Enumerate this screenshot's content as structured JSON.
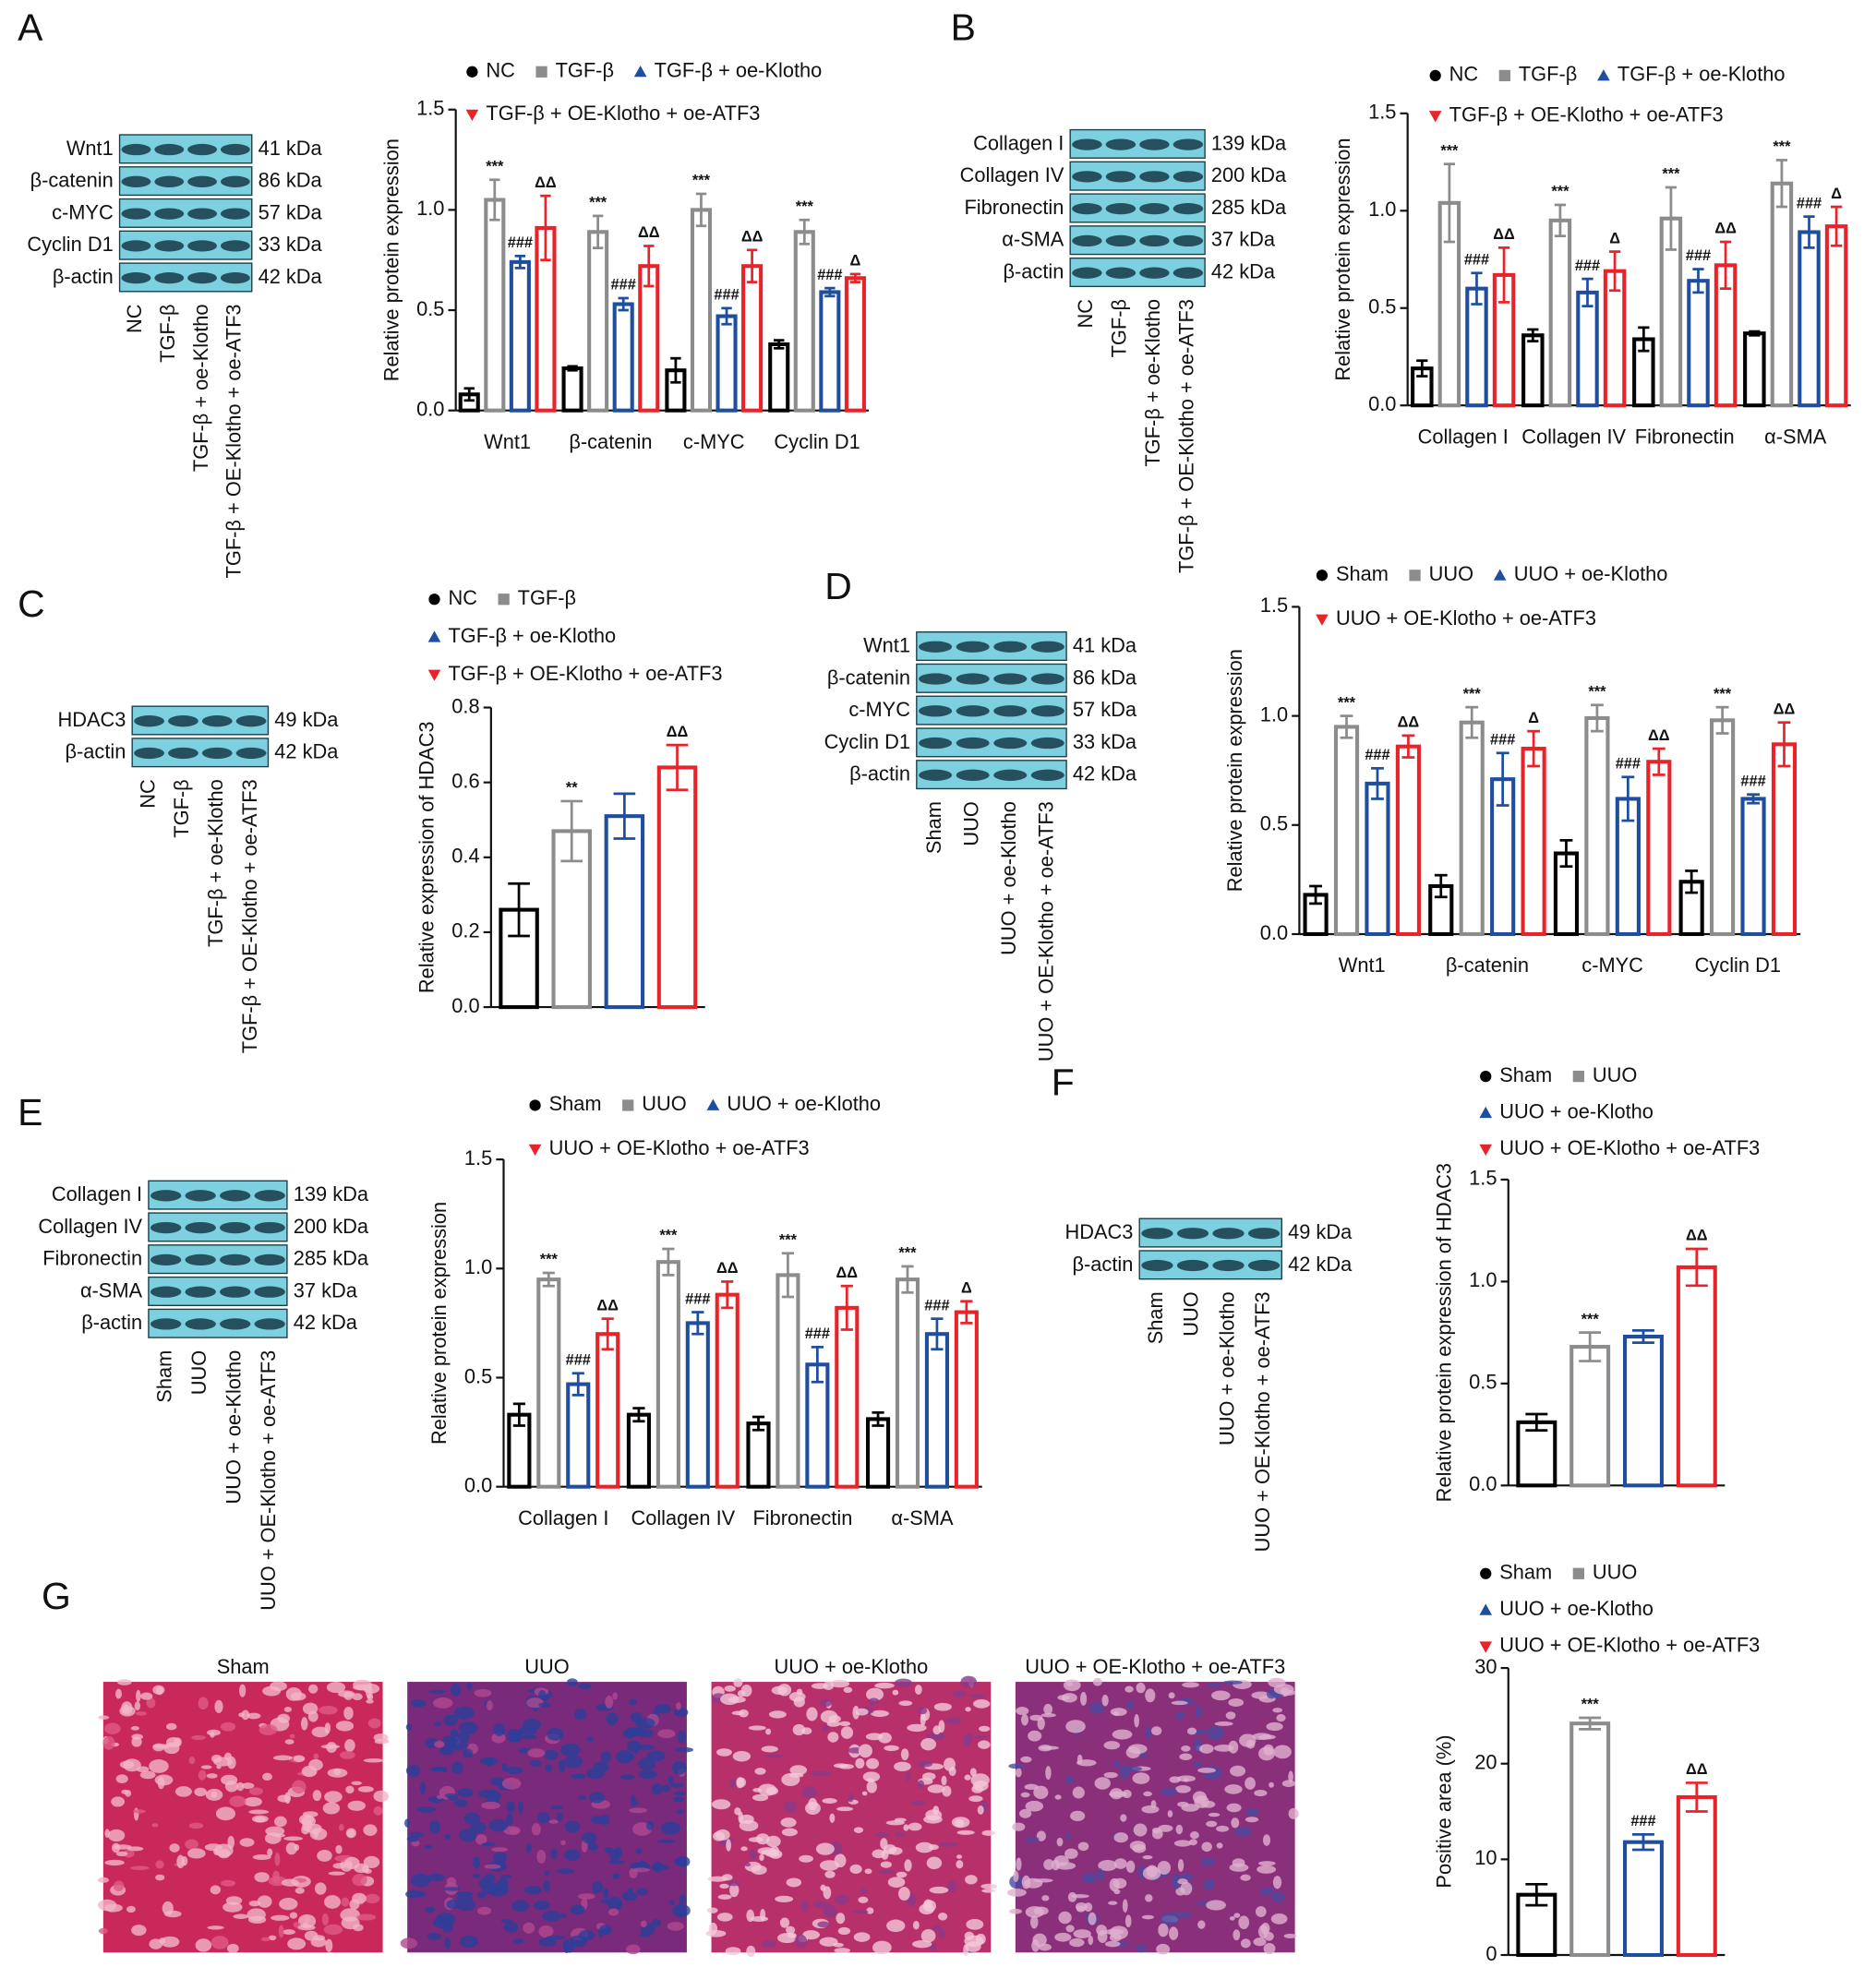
{
  "panel_labels": [
    "A",
    "B",
    "C",
    "D",
    "E",
    "F",
    "G"
  ],
  "blots": [
    {
      "bands": [
        {
          "name": "Wnt1",
          "size": "41 kDa"
        },
        {
          "name": "β-catenin",
          "size": "86 kDa"
        },
        {
          "name": "c-MYC",
          "size": "57 kDa"
        },
        {
          "name": "Cyclin D1",
          "size": "33 kDa"
        },
        {
          "name": "β-actin",
          "size": "42 kDa"
        }
      ],
      "lanes": [
        "NC",
        "TGF-β",
        "TGF-β + oe-Klotho",
        "TGF-β + OE-Klotho + oe-ATF3"
      ]
    },
    {
      "bands": [
        {
          "name": "Collagen I",
          "size": "139 kDa"
        },
        {
          "name": "Collagen IV",
          "size": "200 kDa"
        },
        {
          "name": "Fibronectin",
          "size": "285 kDa"
        },
        {
          "name": "α-SMA",
          "size": "37 kDa"
        },
        {
          "name": "β-actin",
          "size": "42 kDa"
        }
      ],
      "lanes": [
        "NC",
        "TGF-β",
        "TGF-β + oe-Klotho",
        "TGF-β + OE-Klotho + oe-ATF3"
      ]
    },
    {
      "bands": [
        {
          "name": "HDAC3",
          "size": "49 kDa"
        },
        {
          "name": "β-actin",
          "size": "42 kDa"
        }
      ],
      "lanes": [
        "NC",
        "TGF-β",
        "TGF-β + oe-Klotho",
        "TGF-β + OE-Klotho + oe-ATF3"
      ]
    },
    {
      "bands": [
        {
          "name": "Wnt1",
          "size": "41 kDa"
        },
        {
          "name": "β-catenin",
          "size": "86 kDa"
        },
        {
          "name": "c-MYC",
          "size": "57 kDa"
        },
        {
          "name": "Cyclin D1",
          "size": "33 kDa"
        },
        {
          "name": "β-actin",
          "size": "42 kDa"
        }
      ],
      "lanes": [
        "Sham",
        "UUO",
        "UUO + oe-Klotho",
        "UUO + OE-Klotho + oe-ATF3"
      ]
    },
    {
      "bands": [
        {
          "name": "Collagen I",
          "size": "139 kDa"
        },
        {
          "name": "Collagen IV",
          "size": "200 kDa"
        },
        {
          "name": "Fibronectin",
          "size": "285 kDa"
        },
        {
          "name": "α-SMA",
          "size": "37 kDa"
        },
        {
          "name": "β-actin",
          "size": "42 kDa"
        }
      ],
      "lanes": [
        "Sham",
        "UUO",
        "UUO + oe-Klotho",
        "UUO + OE-Klotho + oe-ATF3"
      ]
    },
    {
      "bands": [
        {
          "name": "HDAC3",
          "size": "49 kDa"
        },
        {
          "name": "β-actin",
          "size": "42 kDa"
        }
      ],
      "lanes": [
        "Sham",
        "UUO",
        "UUO + oe-Klotho",
        "UUO + OE-Klotho + oe-ATF3"
      ]
    }
  ],
  "histology": {
    "labels": [
      "Sham",
      "UUO",
      "UUO + oe-Klotho",
      "UUO + OE-Klotho + oe-ATF3"
    ]
  },
  "chart_data": [
    {
      "type": "bar",
      "y_label": "Relative protein expression",
      "categories": [
        "Wnt1",
        "β-catenin",
        "c-MYC",
        "Cyclin D1"
      ],
      "ylim": [
        0,
        1.5
      ],
      "yticks": [
        {
          "value": 0,
          "label": "0.0"
        },
        0.5,
        {
          "value": 1,
          "label": "1.0"
        },
        1.5
      ],
      "series": [
        {
          "name": "NC",
          "color": "#000000",
          "marker": "circle",
          "values": [
            0.08,
            0.21,
            0.2,
            0.33
          ],
          "errors": [
            0.03,
            0.01,
            0.06,
            0.02
          ],
          "annotations": [
            null,
            null,
            null,
            null
          ]
        },
        {
          "name": "TGF-β",
          "color": "#8c8c8c",
          "marker": "square",
          "values": [
            1.05,
            0.89,
            1.0,
            0.89
          ],
          "errors": [
            0.1,
            0.08,
            0.08,
            0.06
          ],
          "annotations": [
            "***",
            "***",
            "***",
            "***"
          ]
        },
        {
          "name": "TGF-β + oe-Klotho",
          "color": "#1f4e9e",
          "marker": "triangle-up",
          "values": [
            0.74,
            0.53,
            0.47,
            0.59
          ],
          "errors": [
            0.03,
            0.03,
            0.04,
            0.02
          ],
          "annotations": [
            "###",
            "###",
            "###",
            "###"
          ]
        },
        {
          "name": "TGF-β + OE-Klotho + oe-ATF3",
          "color": "#e8242a",
          "marker": "triangle-down",
          "values": [
            0.91,
            0.72,
            0.72,
            0.66
          ],
          "errors": [
            0.16,
            0.1,
            0.08,
            0.02
          ],
          "annotations": [
            "ΔΔ",
            "ΔΔ",
            "ΔΔ",
            "Δ"
          ]
        }
      ]
    },
    {
      "type": "bar",
      "y_label": "Relative protein expression",
      "categories": [
        "Collagen I",
        "Collagen IV",
        "Fibronectin",
        "α-SMA"
      ],
      "ylim": [
        0,
        1.5
      ],
      "yticks": [
        {
          "value": 0,
          "label": "0.0"
        },
        0.5,
        {
          "value": 1,
          "label": "1.0"
        },
        1.5
      ],
      "series": [
        {
          "name": "NC",
          "color": "#000000",
          "marker": "circle",
          "values": [
            0.19,
            0.36,
            0.34,
            0.37
          ],
          "errors": [
            0.04,
            0.03,
            0.06,
            0.01
          ],
          "annotations": [
            null,
            null,
            null,
            null
          ]
        },
        {
          "name": "TGF-β",
          "color": "#8c8c8c",
          "marker": "square",
          "values": [
            1.04,
            0.95,
            0.96,
            1.14
          ],
          "errors": [
            0.2,
            0.08,
            0.16,
            0.12
          ],
          "annotations": [
            "***",
            "***",
            "***",
            "***"
          ]
        },
        {
          "name": "TGF-β + oe-Klotho",
          "color": "#1f4e9e",
          "marker": "triangle-up",
          "values": [
            0.6,
            0.58,
            0.64,
            0.89
          ],
          "errors": [
            0.08,
            0.07,
            0.06,
            0.08
          ],
          "annotations": [
            "###",
            "###",
            "###",
            "###"
          ]
        },
        {
          "name": "TGF-β + OE-Klotho + oe-ATF3",
          "color": "#e8242a",
          "marker": "triangle-down",
          "values": [
            0.67,
            0.69,
            0.72,
            0.92
          ],
          "errors": [
            0.14,
            0.1,
            0.12,
            0.1
          ],
          "annotations": [
            "ΔΔ",
            "Δ",
            "ΔΔ",
            "Δ"
          ]
        }
      ]
    },
    {
      "type": "bar",
      "y_label": "Relative expression of HDAC3",
      "categories": [
        null
      ],
      "ylim": [
        0,
        0.8
      ],
      "yticks": [
        {
          "value": 0,
          "label": "0.0"
        },
        0.2,
        0.4,
        0.6,
        0.8
      ],
      "series": [
        {
          "name": "NC",
          "color": "#000000",
          "marker": "circle",
          "values": [
            0.26
          ],
          "errors": [
            0.07
          ],
          "annotations": [
            null
          ]
        },
        {
          "name": "TGF-β",
          "color": "#8c8c8c",
          "marker": "square",
          "values": [
            0.47
          ],
          "errors": [
            0.08
          ],
          "annotations": [
            "**"
          ]
        },
        {
          "name": "TGF-β + oe-Klotho",
          "color": "#1f4e9e",
          "marker": "triangle-up",
          "values": [
            0.51
          ],
          "errors": [
            0.06
          ],
          "annotations": [
            null
          ]
        },
        {
          "name": "TGF-β + OE-Klotho + oe-ATF3",
          "color": "#e8242a",
          "marker": "triangle-down",
          "values": [
            0.64
          ],
          "errors": [
            0.06
          ],
          "annotations": [
            "ΔΔ"
          ]
        }
      ]
    },
    {
      "type": "bar",
      "y_label": "Relative protein expression",
      "categories": [
        "Wnt1",
        "β-catenin",
        "c-MYC",
        "Cyclin D1"
      ],
      "ylim": [
        0,
        1.5
      ],
      "yticks": [
        {
          "value": 0,
          "label": "0.0"
        },
        0.5,
        {
          "value": 1,
          "label": "1.0"
        },
        1.5
      ],
      "series": [
        {
          "name": "Sham",
          "color": "#000000",
          "marker": "circle",
          "values": [
            0.18,
            0.22,
            0.37,
            0.24
          ],
          "errors": [
            0.04,
            0.05,
            0.06,
            0.05
          ],
          "annotations": [
            null,
            null,
            null,
            null
          ]
        },
        {
          "name": "UUO",
          "color": "#8c8c8c",
          "marker": "square",
          "values": [
            0.95,
            0.97,
            0.99,
            0.98
          ],
          "errors": [
            0.05,
            0.07,
            0.06,
            0.06
          ],
          "annotations": [
            "***",
            "***",
            "***",
            "***"
          ]
        },
        {
          "name": "UUO + oe-Klotho",
          "color": "#1f4e9e",
          "marker": "triangle-up",
          "values": [
            0.69,
            0.71,
            0.62,
            0.62
          ],
          "errors": [
            0.07,
            0.12,
            0.1,
            0.02
          ],
          "annotations": [
            "###",
            "###",
            "###",
            "###"
          ]
        },
        {
          "name": "UUO + OE-Klotho + oe-ATF3",
          "color": "#e8242a",
          "marker": "triangle-down",
          "values": [
            0.86,
            0.85,
            0.79,
            0.87
          ],
          "errors": [
            0.05,
            0.08,
            0.06,
            0.1
          ],
          "annotations": [
            "ΔΔ",
            "Δ",
            "ΔΔ",
            "ΔΔ"
          ]
        }
      ]
    },
    {
      "type": "bar",
      "y_label": "Relative protein expression",
      "categories": [
        "Collagen I",
        "Collagen IV",
        "Fibronectin",
        "α-SMA"
      ],
      "ylim": [
        0,
        1.5
      ],
      "yticks": [
        {
          "value": 0,
          "label": "0.0"
        },
        0.5,
        {
          "value": 1,
          "label": "1.0"
        },
        1.5
      ],
      "series": [
        {
          "name": "Sham",
          "color": "#000000",
          "marker": "circle",
          "values": [
            0.33,
            0.33,
            0.29,
            0.31
          ],
          "errors": [
            0.05,
            0.03,
            0.03,
            0.03
          ],
          "annotations": [
            null,
            null,
            null,
            null
          ]
        },
        {
          "name": "UUO",
          "color": "#8c8c8c",
          "marker": "square",
          "values": [
            0.95,
            1.03,
            0.97,
            0.95
          ],
          "errors": [
            0.03,
            0.06,
            0.1,
            0.06
          ],
          "annotations": [
            "***",
            "***",
            "***",
            "***"
          ]
        },
        {
          "name": "UUO + oe-Klotho",
          "color": "#1f4e9e",
          "marker": "triangle-up",
          "values": [
            0.47,
            0.75,
            0.56,
            0.7
          ],
          "errors": [
            0.05,
            0.05,
            0.08,
            0.07
          ],
          "annotations": [
            "###",
            "###",
            "###",
            "###"
          ]
        },
        {
          "name": "UUO + OE-Klotho + oe-ATF3",
          "color": "#e8242a",
          "marker": "triangle-down",
          "values": [
            0.7,
            0.88,
            0.82,
            0.8
          ],
          "errors": [
            0.07,
            0.06,
            0.1,
            0.05
          ],
          "annotations": [
            "ΔΔ",
            "ΔΔ",
            "ΔΔ",
            "Δ"
          ]
        }
      ]
    },
    {
      "type": "bar",
      "y_label": "Relative protein expression of HDAC3",
      "categories": [
        null
      ],
      "ylim": [
        0,
        1.5
      ],
      "yticks": [
        {
          "value": 0,
          "label": "0.0"
        },
        0.5,
        {
          "value": 1,
          "label": "1.0"
        },
        1.5
      ],
      "series": [
        {
          "name": "Sham",
          "color": "#000000",
          "marker": "circle",
          "values": [
            0.31
          ],
          "errors": [
            0.04
          ],
          "annotations": [
            null
          ]
        },
        {
          "name": "UUO",
          "color": "#8c8c8c",
          "marker": "square",
          "values": [
            0.68
          ],
          "errors": [
            0.07
          ],
          "annotations": [
            "***"
          ]
        },
        {
          "name": "UUO + oe-Klotho",
          "color": "#1f4e9e",
          "marker": "triangle-up",
          "values": [
            0.73
          ],
          "errors": [
            0.03
          ],
          "annotations": [
            null
          ]
        },
        {
          "name": "UUO + OE-Klotho + oe-ATF3",
          "color": "#e8242a",
          "marker": "triangle-down",
          "values": [
            1.07
          ],
          "errors": [
            0.09
          ],
          "annotations": [
            "ΔΔ"
          ]
        }
      ]
    },
    {
      "type": "bar",
      "y_label": "Positive area (%)",
      "categories": [
        null
      ],
      "ylim": [
        0,
        30
      ],
      "yticks": [
        0,
        10,
        20,
        30
      ],
      "series": [
        {
          "name": "Sham",
          "color": "#000000",
          "marker": "circle",
          "values": [
            6.3
          ],
          "errors": [
            1.1
          ],
          "annotations": [
            null
          ]
        },
        {
          "name": "UUO",
          "color": "#8c8c8c",
          "marker": "square",
          "values": [
            24.2
          ],
          "errors": [
            0.6
          ],
          "annotations": [
            "***"
          ]
        },
        {
          "name": "UUO + oe-Klotho",
          "color": "#1f4e9e",
          "marker": "triangle-up",
          "values": [
            11.8
          ],
          "errors": [
            0.8
          ],
          "annotations": [
            "###"
          ]
        },
        {
          "name": "UUO + OE-Klotho + oe-ATF3",
          "color": "#e8242a",
          "marker": "triangle-down",
          "values": [
            16.5
          ],
          "errors": [
            1.5
          ],
          "annotations": [
            "ΔΔ"
          ]
        }
      ]
    }
  ]
}
